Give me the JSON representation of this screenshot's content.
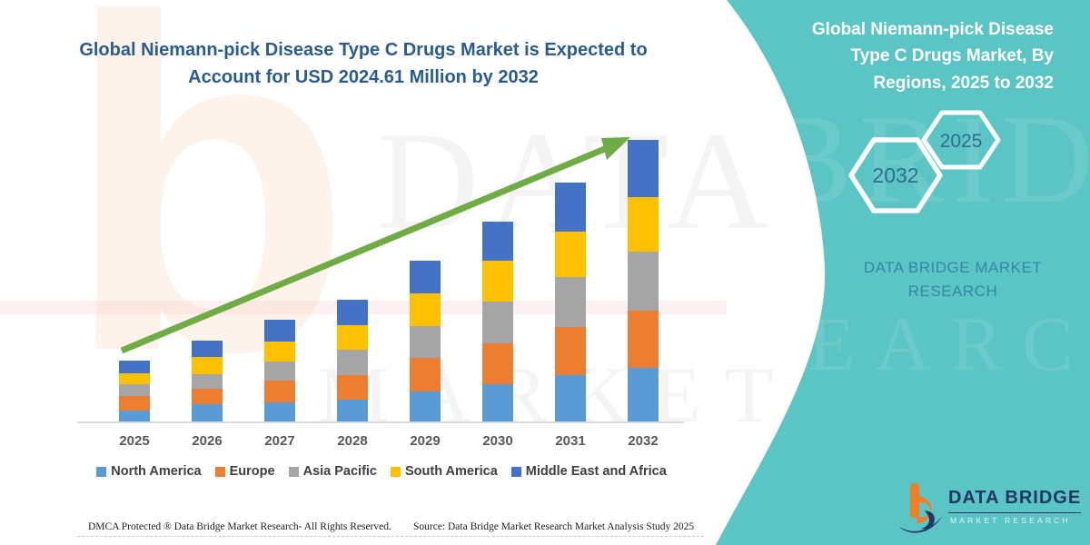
{
  "title": {
    "text": "Global Niemann-pick Disease Type C Drugs Market is Expected to Account for USD 2024.61 Million by 2032"
  },
  "chart_data": {
    "type": "bar",
    "stacked": true,
    "title": "Global Niemann-pick Disease Type C Drugs Market is Expected to Account for USD 2024.61 Million by 2032",
    "units": "USD Million",
    "values_estimated_from_bar_heights": true,
    "stated_total_2032": 2024.61,
    "categories": [
      "2025",
      "2026",
      "2027",
      "2028",
      "2029",
      "2030",
      "2031",
      "2032"
    ],
    "series": [
      {
        "name": "North America",
        "color": "#5B9BD5",
        "values": [
          78,
          124,
          138,
          157,
          215,
          268,
          333,
          386
        ]
      },
      {
        "name": "Europe",
        "color": "#ED7D31",
        "values": [
          104,
          109,
          158,
          179,
          240,
          293,
          347,
          413
        ]
      },
      {
        "name": "Asia Pacific",
        "color": "#A5A5A5",
        "values": [
          85,
          106,
          137,
          181,
          229,
          299,
          358,
          424
        ]
      },
      {
        "name": "South America",
        "color": "#FFC000",
        "values": [
          80,
          128,
          142,
          175,
          240,
          294,
          327,
          390
        ]
      },
      {
        "name": "Middle East and Africa",
        "color": "#4472C4",
        "values": [
          90,
          112,
          157,
          182,
          234,
          281,
          352,
          412
        ]
      }
    ],
    "legend_position": "bottom",
    "gridlines": false,
    "trend_arrow": true,
    "arrow_color": "#6FAC46"
  },
  "side_panel": {
    "title": "Global Niemann-pick Disease Type C Drugs Market, By Regions, 2025 to 2032",
    "hex_large": "2032",
    "hex_small": "2025",
    "brand": "DATA BRIDGE MARKET RESEARCH",
    "background_color": "#5BC4C5"
  },
  "logo": {
    "name_top": "DATA BRIDGE",
    "name_bottom": "MARKET RESEARCH"
  },
  "footer": {
    "left": "DMCA Protected ® Data Bridge Market Research-  All Rights Reserved.",
    "source": "Source: Data Bridge Market Research  Market Analysis Study 2025"
  },
  "watermark": {
    "letter": "b",
    "line1": "DATA BRIDGE",
    "line2": "MARKET RESEARCH",
    "panel_line1": "BRIDGE",
    "panel_line2": "SEARCH"
  },
  "colors": {
    "title_blue": "#2A5C8E",
    "teal_panel": "#5BC4C5",
    "hex_year_text": "#2F6E8F",
    "brand_text": "#3487A5",
    "logo_navy": "#1F3864",
    "logo_orange": "#F07F29",
    "axis_gray": "#D9D9D9",
    "x_label_gray": "#595959"
  }
}
